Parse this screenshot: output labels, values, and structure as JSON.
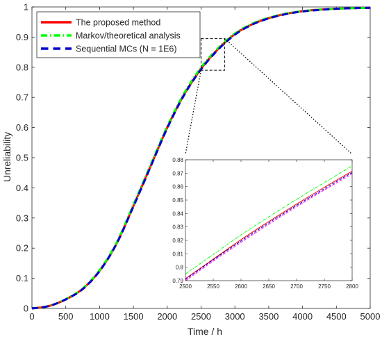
{
  "chart_data": [
    {
      "type": "line",
      "title": "",
      "xlabel": "Time / h",
      "ylabel": "Unreliability",
      "xlim": [
        0,
        5000
      ],
      "ylim": [
        0,
        1
      ],
      "xticks": [
        0,
        500,
        1000,
        1500,
        2000,
        2500,
        3000,
        3500,
        4000,
        4500,
        5000
      ],
      "xtick_labels": [
        "0",
        "500",
        "1000",
        "1500",
        "2000",
        "2500",
        "3000",
        "3500",
        "4000",
        "4500",
        "5000"
      ],
      "yticks": [
        0,
        0.1,
        0.2,
        0.3,
        0.4,
        0.5,
        0.6,
        0.7,
        0.8,
        0.9,
        1
      ],
      "ytick_labels": [
        "0",
        "0.1",
        "0.2",
        "0.3",
        "0.4",
        "0.5",
        "0.6",
        "0.7",
        "0.8",
        "0.9",
        "1"
      ],
      "grid": false,
      "legend_position": "top-left",
      "x": [
        0,
        250,
        500,
        750,
        1000,
        1250,
        1500,
        1750,
        2000,
        2250,
        2500,
        2750,
        3000,
        3250,
        3500,
        3750,
        4000,
        4250,
        4500,
        4750,
        5000
      ],
      "series": [
        {
          "name": "The proposed method",
          "color": "#ff0000",
          "style": "solid",
          "values": [
            0,
            0.008,
            0.03,
            0.065,
            0.125,
            0.215,
            0.34,
            0.47,
            0.6,
            0.71,
            0.795,
            0.86,
            0.91,
            0.942,
            0.963,
            0.977,
            0.986,
            0.991,
            0.994,
            0.996,
            0.997
          ]
        },
        {
          "name": "Markov/theoretical analysis",
          "color": "#00ff00",
          "style": "dashdot",
          "values": [
            0,
            0.008,
            0.031,
            0.066,
            0.127,
            0.218,
            0.344,
            0.474,
            0.604,
            0.714,
            0.799,
            0.863,
            0.912,
            0.944,
            0.964,
            0.978,
            0.986,
            0.991,
            0.994,
            0.996,
            0.997
          ]
        },
        {
          "name": "Sequential MCs (N = 1E6)",
          "color": "#0000cc",
          "style": "dashed",
          "values": [
            0,
            0.008,
            0.03,
            0.064,
            0.124,
            0.214,
            0.338,
            0.468,
            0.598,
            0.708,
            0.793,
            0.858,
            0.908,
            0.941,
            0.962,
            0.976,
            0.985,
            0.99,
            0.994,
            0.996,
            0.997
          ]
        }
      ],
      "zoom_box": {
        "x": [
          2500,
          2850
        ],
        "y": [
          0.79,
          0.895
        ]
      }
    },
    {
      "type": "line",
      "title": "",
      "xlim": [
        2500,
        2800
      ],
      "ylim": [
        0.79,
        0.88
      ],
      "xticks": [
        2500,
        2550,
        2600,
        2650,
        2700,
        2750,
        2800
      ],
      "xtick_labels": [
        "2500",
        "2550",
        "2600",
        "2650",
        "2700",
        "2750",
        "2800"
      ],
      "yticks": [
        0.79,
        0.8,
        0.81,
        0.82,
        0.83,
        0.84,
        0.85,
        0.86,
        0.87,
        0.88
      ],
      "ytick_labels": [
        "0.79",
        "0.8",
        "0.81",
        "0.82",
        "0.83",
        "0.84",
        "0.85",
        "0.86",
        "0.87",
        "0.88"
      ],
      "grid": false,
      "x": [
        2500,
        2550,
        2600,
        2650,
        2700,
        2750,
        2800
      ],
      "series": [
        {
          "color": "#ff0000",
          "style": "solid",
          "values": [
            0.7915,
            0.806,
            0.8205,
            0.834,
            0.847,
            0.8595,
            0.8715
          ]
        },
        {
          "color": "#00ff00",
          "style": "dashdot",
          "values": [
            0.795,
            0.8095,
            0.824,
            0.8375,
            0.8505,
            0.863,
            0.8755
          ]
        },
        {
          "color": "#0000cc",
          "style": "dashed",
          "values": [
            0.791,
            0.8055,
            0.8195,
            0.833,
            0.846,
            0.8585,
            0.8705
          ]
        },
        {
          "color": "#ff00ff",
          "style": "dashed",
          "values": [
            0.79,
            0.8045,
            0.8185,
            0.832,
            0.845,
            0.8575,
            0.8695
          ]
        }
      ]
    }
  ]
}
